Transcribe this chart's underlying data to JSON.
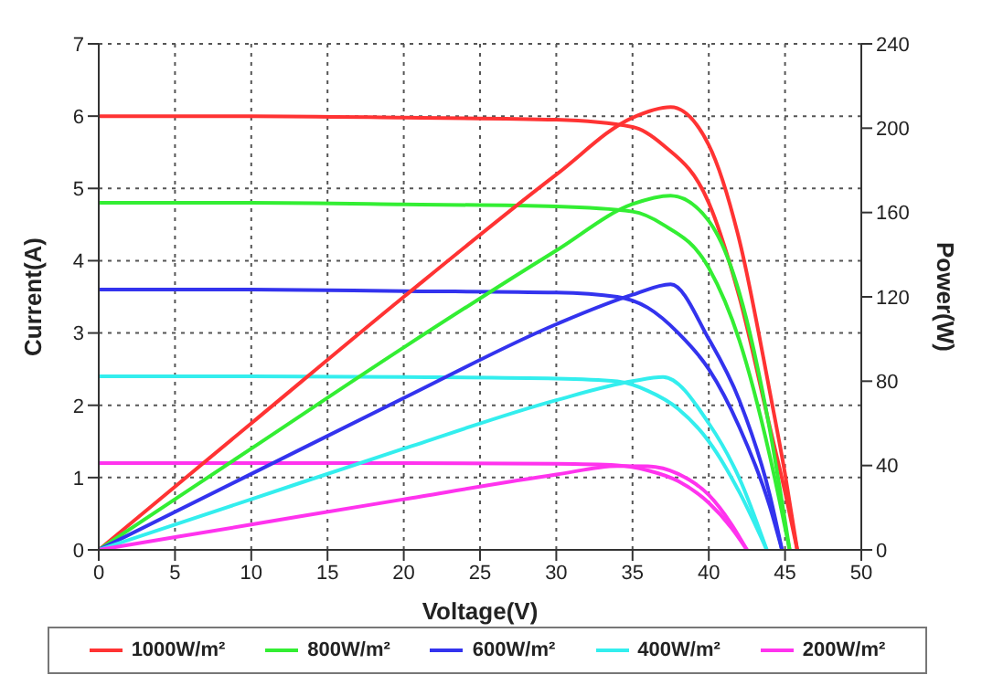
{
  "chart_data": {
    "type": "line",
    "xlabel": "Voltage(V)",
    "ylabel": "Current(A)",
    "y2label": "Power(W)",
    "xlim": [
      0,
      50
    ],
    "xticks": [
      0,
      5,
      10,
      15,
      20,
      25,
      30,
      35,
      40,
      45,
      50
    ],
    "ylim": [
      0,
      7
    ],
    "yticks": [
      0,
      1,
      2,
      3,
      4,
      5,
      6,
      7
    ],
    "y2lim": [
      0,
      240
    ],
    "y2ticks": [
      0,
      40,
      80,
      120,
      160,
      200,
      240
    ],
    "grid": true,
    "legend": "bottom",
    "marker": "none",
    "line_style": "solid",
    "series": [
      {
        "name": "1000W/m²",
        "color": "#ff3333",
        "x": [
          0,
          10,
          20,
          30,
          35,
          37,
          40,
          42,
          44,
          45,
          45.8
        ],
        "values": [
          6.0,
          6.0,
          5.98,
          5.95,
          5.85,
          5.6,
          4.8,
          3.5,
          1.7,
          0.8,
          0
        ]
      },
      {
        "name": "800W/m²",
        "color": "#33ee33",
        "x": [
          0,
          10,
          20,
          30,
          35,
          37,
          40,
          42,
          44,
          45.3
        ],
        "values": [
          4.8,
          4.8,
          4.78,
          4.75,
          4.68,
          4.5,
          3.9,
          2.9,
          1.3,
          0
        ]
      },
      {
        "name": "600W/m²",
        "color": "#3333ee",
        "x": [
          0,
          10,
          20,
          30,
          34,
          36,
          38,
          40,
          42,
          44,
          44.8
        ],
        "values": [
          3.6,
          3.6,
          3.58,
          3.56,
          3.5,
          3.35,
          3.0,
          2.5,
          1.7,
          0.6,
          0
        ]
      },
      {
        "name": "400W/m²",
        "color": "#33eeee",
        "x": [
          0,
          10,
          20,
          30,
          34,
          36,
          38,
          40,
          42,
          43.8
        ],
        "values": [
          2.4,
          2.4,
          2.39,
          2.37,
          2.33,
          2.2,
          1.95,
          1.5,
          0.8,
          0
        ]
      },
      {
        "name": "200W/m²",
        "color": "#ff33ee",
        "x": [
          0,
          10,
          20,
          30,
          34,
          36,
          38,
          40,
          41.5,
          42.5
        ],
        "values": [
          1.2,
          1.2,
          1.2,
          1.19,
          1.17,
          1.1,
          0.95,
          0.65,
          0.3,
          0
        ]
      },
      {
        "color": "#ff3333",
        "axis": "y2",
        "x": [
          0,
          10,
          20,
          30,
          35,
          37.5,
          40,
          42,
          44,
          45,
          45.8
        ],
        "values": [
          0,
          60,
          120,
          178,
          205,
          210,
          192,
          147,
          75,
          36,
          0
        ]
      },
      {
        "color": "#33ee33",
        "axis": "y2",
        "x": [
          0,
          10,
          20,
          30,
          35,
          37.5,
          40,
          42,
          44,
          45.3
        ],
        "values": [
          0,
          48,
          96,
          142,
          164,
          168,
          156,
          122,
          57,
          0
        ]
      },
      {
        "color": "#3333ee",
        "axis": "y2",
        "x": [
          0,
          10,
          20,
          30,
          35,
          37.5,
          40,
          42,
          44,
          44.8
        ],
        "values": [
          0,
          36,
          72,
          107,
          121,
          126,
          100,
          71,
          26,
          0
        ]
      },
      {
        "color": "#33eeee",
        "axis": "y2",
        "x": [
          0,
          10,
          20,
          30,
          35,
          37,
          40,
          42,
          43.8
        ],
        "values": [
          0,
          24,
          48,
          71,
          80,
          82,
          60,
          34,
          0
        ]
      },
      {
        "color": "#ff33ee",
        "axis": "y2",
        "x": [
          0,
          10,
          20,
          30,
          34,
          36,
          38,
          40,
          41.5,
          42.5
        ],
        "values": [
          0,
          12,
          24,
          35.7,
          39.8,
          39.6,
          36,
          26,
          12,
          0
        ]
      }
    ]
  }
}
